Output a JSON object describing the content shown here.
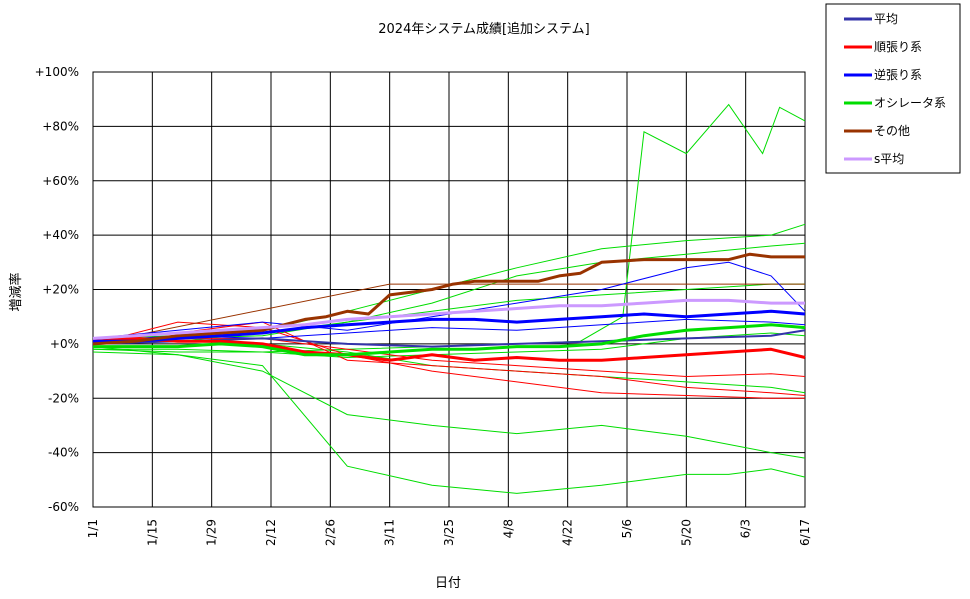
{
  "chart_data": {
    "type": "line",
    "title": "2024年システム成績[追加システム]",
    "xlabel": "日付",
    "ylabel": "増減率",
    "x_ticks": [
      "1/1",
      "1/15",
      "1/29",
      "2/12",
      "2/26",
      "3/11",
      "3/25",
      "4/8",
      "4/22",
      "5/6",
      "5/20",
      "6/3",
      "6/17"
    ],
    "y_ticks": [
      "+100%",
      "+80%",
      "+60%",
      "+40%",
      "+20%",
      "+0%",
      "-20%",
      "-40%",
      "-60%"
    ],
    "ylim": [
      -60,
      100
    ],
    "grid": true,
    "legend_position": "top-right",
    "series": [
      {
        "name": "平均",
        "color": "#3333aa",
        "x": [
          0,
          20,
          40,
          60,
          80,
          100,
          120,
          140,
          160,
          168
        ],
        "y": [
          0,
          1,
          2,
          0,
          -1,
          0,
          1,
          2,
          3,
          5
        ]
      },
      {
        "name": "順張り系",
        "color": "#ff0000",
        "x": [
          0,
          10,
          20,
          30,
          40,
          50,
          60,
          70,
          80,
          90,
          100,
          110,
          120,
          130,
          140,
          150,
          160,
          168
        ],
        "y": [
          1,
          2,
          1,
          1,
          0,
          -3,
          -4,
          -6,
          -4,
          -6,
          -5,
          -6,
          -6,
          -5,
          -4,
          -3,
          -2,
          -5
        ]
      },
      {
        "name": "逆張り系",
        "color": "#0000ff",
        "x": [
          0,
          10,
          20,
          30,
          40,
          50,
          60,
          70,
          80,
          90,
          100,
          110,
          120,
          130,
          140,
          150,
          160,
          168
        ],
        "y": [
          1,
          1,
          2,
          3,
          4,
          6,
          7,
          8,
          9,
          9,
          8,
          9,
          10,
          11,
          10,
          11,
          12,
          11
        ]
      },
      {
        "name": "オシレータ系",
        "color": "#00dd00",
        "x": [
          0,
          10,
          20,
          30,
          40,
          50,
          60,
          70,
          80,
          90,
          100,
          110,
          120,
          130,
          140,
          150,
          160,
          168
        ],
        "y": [
          -1,
          -1,
          -1,
          0,
          -1,
          -4,
          -4,
          -3,
          -2,
          -2,
          -1,
          -1,
          0,
          3,
          5,
          6,
          7,
          6
        ]
      },
      {
        "name": "その他",
        "color": "#993300",
        "x": [
          0,
          10,
          20,
          30,
          40,
          50,
          55,
          60,
          65,
          70,
          75,
          80,
          85,
          90,
          100,
          105,
          110,
          115,
          120,
          130,
          140,
          150,
          155,
          160,
          168
        ],
        "y": [
          0,
          1,
          3,
          4,
          5,
          9,
          10,
          12,
          11,
          18,
          19,
          20,
          22,
          23,
          23,
          23,
          25,
          26,
          30,
          31,
          31,
          31,
          33,
          32,
          32
        ]
      },
      {
        "name": "s平均",
        "color": "#cc99ff",
        "x": [
          0,
          10,
          20,
          30,
          40,
          50,
          60,
          70,
          80,
          90,
          100,
          110,
          120,
          130,
          140,
          150,
          160,
          168
        ],
        "y": [
          2,
          3,
          4,
          5,
          6,
          7,
          9,
          10,
          11,
          12,
          13,
          14,
          14,
          15,
          16,
          16,
          15,
          15
        ]
      }
    ],
    "background_series": [
      {
        "color": "#00dd00",
        "x": [
          0,
          20,
          40,
          60,
          80,
          100,
          115,
          125,
          130,
          140,
          150,
          158,
          162,
          168
        ],
        "y": [
          -2,
          -3,
          -3,
          -2,
          -1,
          0,
          1,
          10,
          78,
          70,
          88,
          70,
          87,
          82
        ]
      },
      {
        "color": "#00dd00",
        "x": [
          0,
          20,
          40,
          60,
          80,
          100,
          120,
          140,
          150,
          160,
          168
        ],
        "y": [
          -3,
          -4,
          -8,
          -45,
          -52,
          -55,
          -52,
          -48,
          -48,
          -46,
          -49
        ]
      },
      {
        "color": "#00dd00",
        "x": [
          0,
          20,
          40,
          60,
          80,
          100,
          120,
          140,
          160,
          168
        ],
        "y": [
          -1,
          -4,
          -10,
          -26,
          -30,
          -33,
          -30,
          -34,
          -40,
          -42
        ]
      },
      {
        "color": "#00dd00",
        "x": [
          0,
          20,
          40,
          60,
          80,
          100,
          120,
          140,
          160,
          168
        ],
        "y": [
          2,
          3,
          5,
          12,
          20,
          28,
          35,
          38,
          40,
          44
        ]
      },
      {
        "color": "#00dd00",
        "x": [
          0,
          20,
          40,
          60,
          80,
          100,
          120,
          140,
          160,
          168
        ],
        "y": [
          0,
          2,
          3,
          8,
          15,
          25,
          30,
          33,
          36,
          37
        ]
      },
      {
        "color": "#00dd00",
        "x": [
          0,
          20,
          40,
          60,
          80,
          100,
          120,
          140,
          160,
          168
        ],
        "y": [
          1,
          1,
          0,
          -3,
          -8,
          -10,
          -12,
          -14,
          -16,
          -18
        ]
      },
      {
        "color": "#00dd00",
        "x": [
          0,
          20,
          40,
          60,
          80,
          100,
          120,
          140,
          160,
          168
        ],
        "y": [
          -2,
          -2,
          -3,
          -5,
          -4,
          -3,
          -2,
          2,
          4,
          3
        ]
      },
      {
        "color": "#00dd00",
        "x": [
          0,
          20,
          40,
          60,
          80,
          100,
          120,
          140,
          160,
          168
        ],
        "y": [
          0,
          1,
          4,
          8,
          12,
          16,
          18,
          20,
          22,
          22
        ]
      },
      {
        "color": "#ff0000",
        "x": [
          0,
          20,
          40,
          60,
          80,
          100,
          120,
          140,
          160,
          168
        ],
        "y": [
          0,
          8,
          6,
          -4,
          -10,
          -14,
          -18,
          -19,
          -20,
          -20
        ]
      },
      {
        "color": "#ff0000",
        "x": [
          0,
          20,
          40,
          60,
          80,
          100,
          120,
          140,
          160,
          168
        ],
        "y": [
          1,
          4,
          8,
          -6,
          -8,
          -10,
          -12,
          -16,
          -18,
          -19
        ]
      },
      {
        "color": "#ff0000",
        "x": [
          0,
          20,
          40,
          60,
          80,
          100,
          120,
          140,
          160,
          168
        ],
        "y": [
          0,
          2,
          2,
          -2,
          -6,
          -8,
          -10,
          -12,
          -11,
          -12
        ]
      },
      {
        "color": "#993300",
        "x": [
          0,
          70,
          100,
          120,
          140,
          168
        ],
        "y": [
          0,
          22,
          22,
          22,
          22,
          22
        ]
      },
      {
        "color": "#0000ff",
        "x": [
          0,
          20,
          40,
          60,
          80,
          100,
          120,
          140,
          150,
          160,
          168
        ],
        "y": [
          2,
          5,
          8,
          5,
          10,
          15,
          20,
          28,
          30,
          25,
          12
        ]
      },
      {
        "color": "#0000ff",
        "x": [
          0,
          20,
          40,
          60,
          80,
          100,
          120,
          140,
          160,
          168
        ],
        "y": [
          1,
          3,
          2,
          4,
          6,
          5,
          7,
          9,
          8,
          7
        ]
      }
    ]
  }
}
